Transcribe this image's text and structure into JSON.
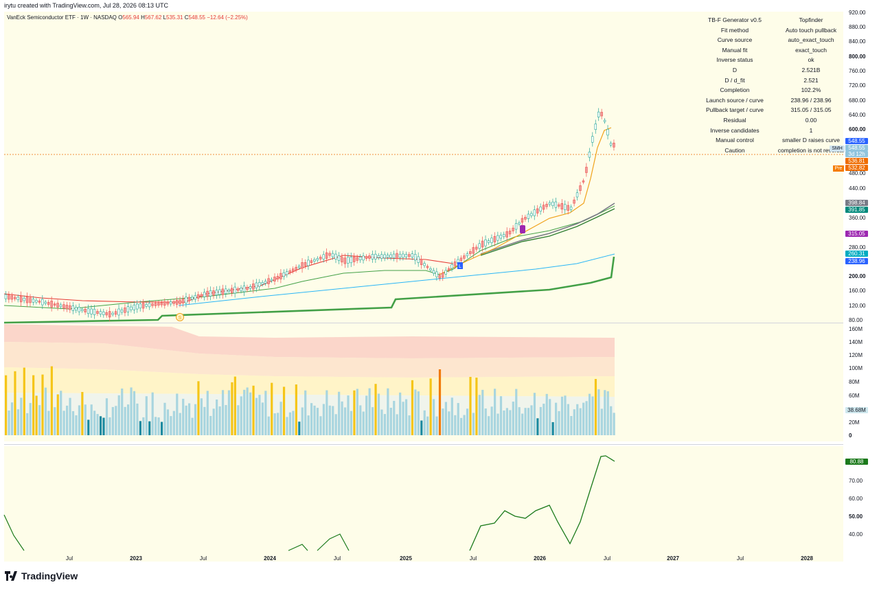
{
  "topbar": {
    "text": "irytu created with TradingView.com, Jul 28, 2026 08:13 UTC"
  },
  "header": {
    "symbol": "VanEck Semiconductor ETF · 1W · NASDAQ",
    "o_label": "O",
    "o": "565.94",
    "h_label": "H",
    "h": "567.62",
    "l_label": "L",
    "l": "535.31",
    "c_label": "C",
    "c": "548.55",
    "change": "−12.64 (−2.25%)"
  },
  "table": [
    {
      "k": "TB-F Generator v0.5",
      "v": "Topfinder"
    },
    {
      "k": "Fit method",
      "v": "Auto touch pullback"
    },
    {
      "k": "Curve source",
      "v": "auto_exact_touch"
    },
    {
      "k": "Manual fit",
      "v": "exact_touch"
    },
    {
      "k": "Inverse status",
      "v": "ok"
    },
    {
      "k": "D",
      "v": "2.521B"
    },
    {
      "k": "D / d_fit",
      "v": "2.521"
    },
    {
      "k": "Completion",
      "v": "102.2%"
    },
    {
      "k": "Launch source / curve",
      "v": "238.96 / 238.96"
    },
    {
      "k": "Pullback target / curve",
      "v": "315.05 / 315.05"
    },
    {
      "k": "Residual",
      "v": "0.00"
    },
    {
      "k": "Inverse candidates",
      "v": "1"
    },
    {
      "k": "Manual control",
      "v": "smaller D raises curve"
    },
    {
      "k": "Caution",
      "v": "completion is not reversal"
    }
  ],
  "price_axis": [
    {
      "t": "920.00",
      "bold": false
    },
    {
      "t": "880.00",
      "bold": false
    },
    {
      "t": "840.00",
      "bold": false
    },
    {
      "t": "800.00",
      "bold": true
    },
    {
      "t": "760.00",
      "bold": false
    },
    {
      "t": "720.00",
      "bold": false
    },
    {
      "t": "680.00",
      "bold": false
    },
    {
      "t": "640.00",
      "bold": false
    },
    {
      "t": "600.00",
      "bold": true
    },
    {
      "t": "480.00",
      "bold": false
    },
    {
      "t": "440.00",
      "bold": false
    },
    {
      "t": "360.00",
      "bold": false
    },
    {
      "t": "280.00",
      "bold": false
    },
    {
      "t": "200.00",
      "bold": true
    },
    {
      "t": "160.00",
      "bold": false
    },
    {
      "t": "120.00",
      "bold": false
    },
    {
      "t": "80.00",
      "bold": false
    }
  ],
  "price_badges": [
    {
      "t": "548.55",
      "color": "#2962ff"
    },
    {
      "t": "548.55",
      "color": "#90c4dd"
    },
    {
      "t": "3d 12h",
      "color": "#90c4dd"
    },
    {
      "t": "536.81",
      "color": "#ef6c00"
    },
    {
      "t": "532.82",
      "color": "#ef6c00"
    },
    {
      "t": "398.84",
      "color": "#787b86"
    },
    {
      "t": "391.85",
      "color": "#00897b"
    },
    {
      "t": "315.05",
      "color": "#9c27b0"
    },
    {
      "t": "260.31",
      "color": "#00acc1"
    },
    {
      "t": "238.96",
      "color": "#2962ff"
    }
  ],
  "smh_label": "SMH",
  "pre_label": "Pre",
  "volume_axis": [
    "160M",
    "140M",
    "120M",
    "100M",
    "80M",
    "60M",
    "20M",
    "0"
  ],
  "volume_badge": "38.68M",
  "osc_axis": [
    {
      "t": "70.00",
      "bold": false
    },
    {
      "t": "60.00",
      "bold": false
    },
    {
      "t": "50.00",
      "bold": true
    },
    {
      "t": "40.00",
      "bold": false
    }
  ],
  "osc_badge": "80.88",
  "time_axis": [
    {
      "t": "Jul",
      "bold": false
    },
    {
      "t": "2023",
      "bold": true
    },
    {
      "t": "Jul",
      "bold": false
    },
    {
      "t": "2024",
      "bold": true
    },
    {
      "t": "Jul",
      "bold": false
    },
    {
      "t": "2025",
      "bold": true
    },
    {
      "t": "Jul",
      "bold": false
    },
    {
      "t": "2026",
      "bold": true
    },
    {
      "t": "Jul",
      "bold": false
    },
    {
      "t": "2027",
      "bold": true
    },
    {
      "t": "Jul",
      "bold": false
    },
    {
      "t": "2028",
      "bold": true
    }
  ],
  "brand": "TradingView",
  "colors": {
    "bg": "#fefde9",
    "up": "#26a69a",
    "down": "#ef5350",
    "accent": "#2962ff"
  }
}
